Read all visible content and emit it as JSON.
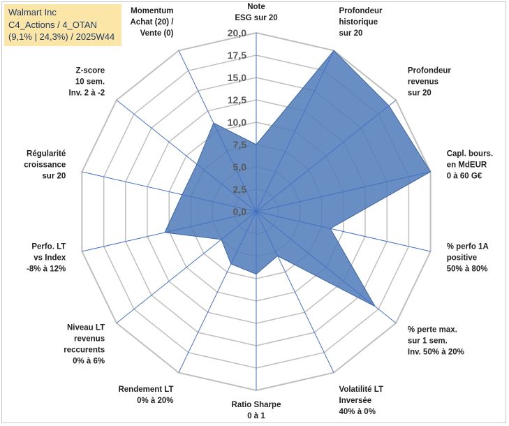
{
  "info": {
    "line1": "Walmart Inc",
    "line2": "C4_Actions / 4_OTAN",
    "line3": "(9,1% | 24,3%) / 2025W44"
  },
  "colors": {
    "fill": "#4f7ab8",
    "stroke": "#3b64a3",
    "grid": "#bfbfbf",
    "spoke": "#4472c4",
    "info_bg": "#fbe6a8"
  },
  "chart_data": {
    "type": "radar",
    "title": "",
    "rmin": 0,
    "rmax": 20,
    "ticks": [
      "0,0",
      "2,5",
      "5,0",
      "7,5",
      "10,0",
      "12,5",
      "15,0",
      "17,5",
      "20,0"
    ],
    "grid": true,
    "categories": [
      [
        "Note",
        "ESG sur 20"
      ],
      [
        "Profondeur",
        "historique",
        "sur 20"
      ],
      [
        "Profondeur",
        "revenus",
        "sur 20"
      ],
      [
        "Capl. bours.",
        "en MdEUR",
        "0 à 60 G€"
      ],
      [
        "% perfo 1A",
        "positive",
        "50% à 80%"
      ],
      [
        "% perte max.",
        "sur 1 sem.",
        "Inv. 50% à 20%"
      ],
      [
        "Volatilité LT",
        "Inversée",
        "40% à 0%"
      ],
      [
        "Ratio Sharpe",
        "0 à 1"
      ],
      [
        "Rendement LT",
        "0% à 20%"
      ],
      [
        "Niveau LT",
        "revenus",
        "reccurents",
        "0% à 6%"
      ],
      [
        "Perfo. LT",
        "vs Index",
        "-8% à 12%"
      ],
      [
        "Régularité",
        "croissance",
        "sur 20"
      ],
      [
        "Z-score",
        "10 sem.",
        "Inv. 2 à -2"
      ],
      [
        "Momentum",
        "Achat (20) /",
        "Vente (0)"
      ]
    ],
    "series": [
      {
        "name": "Walmart Inc",
        "values": [
          7.5,
          20.0,
          19.0,
          20.0,
          8.5,
          17.0,
          5.5,
          7.0,
          6.5,
          5.0,
          10.5,
          8.5,
          8.5,
          11.0
        ]
      }
    ]
  }
}
